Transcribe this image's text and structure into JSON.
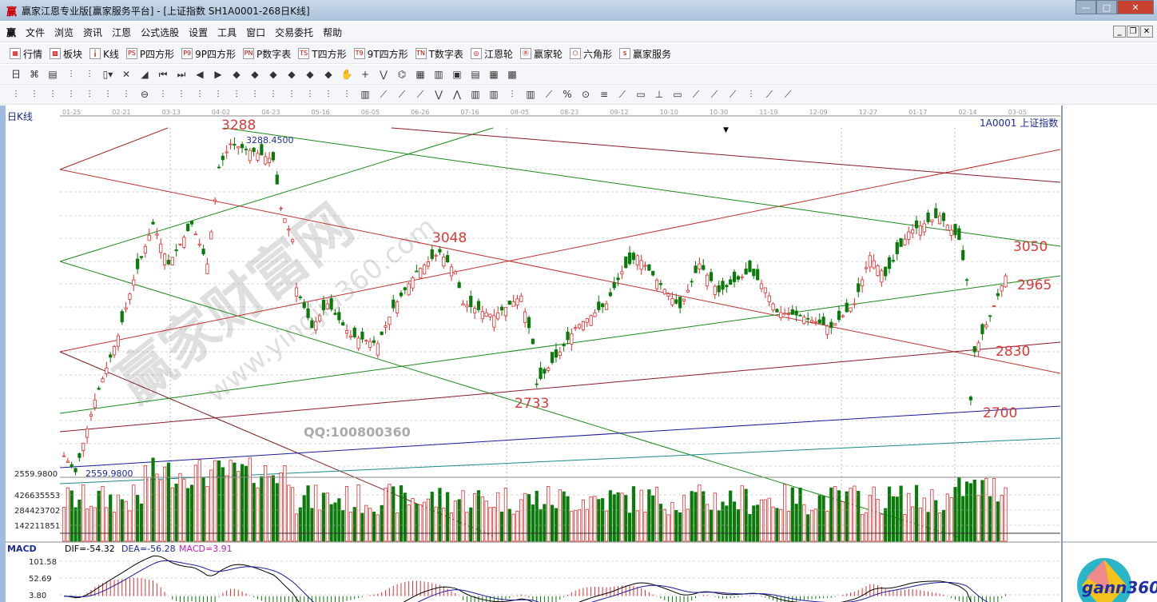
{
  "window": {
    "title": "赢家江恩专业版[赢家服务平台] - [上证指数  SH1A0001-268日K线]",
    "logo": "赢",
    "minimize": "—",
    "maximize": "□",
    "close": "✕"
  },
  "menu": {
    "logo": "赢",
    "items": [
      "文件",
      "浏览",
      "资讯",
      "江恩",
      "公式选股",
      "设置",
      "工具",
      "窗口",
      "交易委托",
      "帮助"
    ],
    "mdi_min": "_",
    "mdi_restore": "❐",
    "mdi_close": "✕"
  },
  "toolbar1": [
    {
      "icon": "grid-icon",
      "glyph": "▦",
      "label": "行情"
    },
    {
      "icon": "blocks-icon",
      "glyph": "▩",
      "label": "板块"
    },
    {
      "icon": "candles-icon",
      "glyph": "╽",
      "label": "K线"
    },
    {
      "icon": "ps-icon",
      "glyph": "PS",
      "label": "P四方形"
    },
    {
      "icon": "p9-icon",
      "glyph": "P9",
      "label": "9P四方形"
    },
    {
      "icon": "pn-icon",
      "glyph": "PN",
      "label": "P数字表"
    },
    {
      "icon": "ts-icon",
      "glyph": "TS",
      "label": "T四方形"
    },
    {
      "icon": "t9-icon",
      "glyph": "T9",
      "label": "9T四方形"
    },
    {
      "icon": "tn-icon",
      "glyph": "TN",
      "label": "T数字表"
    },
    {
      "icon": "gann-wheel-icon",
      "glyph": "◎",
      "label": "江恩轮"
    },
    {
      "icon": "big-wheel-icon",
      "glyph": "Ⓑ",
      "label": "赢家轮"
    },
    {
      "icon": "hexagon-icon",
      "glyph": "⬡",
      "label": "六角形"
    },
    {
      "icon": "dollar-icon",
      "glyph": "$",
      "label": "赢家服务"
    }
  ],
  "toolbar2": [
    "日▾",
    "⌘",
    "▤",
    "⫶",
    "⫶",
    "▯▾",
    "✕",
    "◢",
    "⏮",
    "⏭",
    "◀",
    "▶",
    "◆",
    "◆",
    "◆",
    "◆",
    "◆",
    "◆",
    "✋",
    "+",
    "⋁",
    "⌬",
    "▦",
    "▥",
    "▣",
    "▤",
    "▦",
    "▩"
  ],
  "toolbar3": [
    "⫶",
    "⫶",
    "⫶",
    "⫶",
    "⫶",
    "⫶",
    "⫶",
    "⊖",
    "⫶",
    "⫶",
    "⫶",
    "⫶",
    "⫶",
    "⫶",
    "⫶",
    "⫶",
    "⫶",
    "⫶",
    "⫶",
    "▥",
    "⟋",
    "⟋",
    "⟋",
    "⋁",
    "⋀",
    "▥",
    "▥",
    "⫶",
    "▥",
    "⟋",
    "%",
    "⊙",
    "≡",
    "⟋",
    "▭",
    "⊥",
    "▭",
    "⟋",
    "⟋",
    "⟋",
    "⫶",
    "⟋",
    "⟋"
  ],
  "chart": {
    "period_label": "日K线",
    "symbol_label": "1A0001 上证指数",
    "x_tick_labels": [
      "01-25",
      "02-21",
      "03-13",
      "04-02",
      "04-23",
      "05-16",
      "06-05",
      "06-26",
      "07-16",
      "08-05",
      "08-23",
      "09-12",
      "10-10",
      "10-30",
      "11-19",
      "12-09",
      "12-27",
      "01-17",
      "02-14",
      "03-05"
    ],
    "price_axis_label": "2559.9800",
    "low_marker": "2559.9800",
    "high_marker": "3288.4500",
    "annotations": [
      "3288",
      "3048",
      "2733",
      "3050",
      "2965",
      "2830",
      "2700"
    ],
    "watermark": "赢家财富网",
    "watermark_url": "www.yingjia360.com",
    "qq": "QQ:100800360",
    "colors": {
      "up": "#e03030",
      "down": "#0a7a0a",
      "bg": "#ffffff",
      "annotation": "#d83a3a"
    }
  },
  "volume": {
    "ticks": [
      "426635553",
      "284423702",
      "142211851"
    ]
  },
  "macd": {
    "title": "MACD",
    "dif": "DIF=-54.32",
    "dea": "DEA=-56.28",
    "macd": "MACD=3.91",
    "ticks": [
      "101.58",
      "52.69",
      "3.80"
    ]
  },
  "brand": "gann360",
  "chart_data": {
    "type": "candlestick",
    "note_x": "bar index",
    "approx_close": [
      [
        0,
        2598
      ],
      [
        3,
        2563
      ],
      [
        8,
        2720
      ],
      [
        14,
        2860
      ],
      [
        18,
        2982
      ],
      [
        23,
        3104
      ],
      [
        27,
        3017
      ],
      [
        33,
        3104
      ],
      [
        37,
        3017
      ],
      [
        40,
        3227
      ],
      [
        43,
        3279
      ],
      [
        49,
        3262
      ],
      [
        54,
        3244
      ],
      [
        56,
        3139
      ],
      [
        59,
        3070
      ],
      [
        60,
        2965
      ],
      [
        64,
        2878
      ],
      [
        68,
        2930
      ],
      [
        74,
        2860
      ],
      [
        81,
        2843
      ],
      [
        85,
        2921
      ],
      [
        91,
        3000
      ],
      [
        97,
        3043
      ],
      [
        101,
        3000
      ],
      [
        103,
        2930
      ],
      [
        111,
        2904
      ],
      [
        118,
        2947
      ],
      [
        121,
        2843
      ],
      [
        122,
        2755
      ],
      [
        128,
        2825
      ],
      [
        132,
        2878
      ],
      [
        140,
        2930
      ],
      [
        144,
        3000
      ],
      [
        148,
        3035
      ],
      [
        153,
        2982
      ],
      [
        159,
        2921
      ],
      [
        164,
        3017
      ],
      [
        169,
        2956
      ],
      [
        177,
        3000
      ],
      [
        181,
        2965
      ],
      [
        184,
        2912
      ],
      [
        190,
        2904
      ],
      [
        198,
        2878
      ],
      [
        204,
        2930
      ],
      [
        208,
        3035
      ],
      [
        212,
        2991
      ],
      [
        218,
        3087
      ],
      [
        226,
        3122
      ],
      [
        231,
        3070
      ],
      [
        233,
        2982
      ],
      [
        234,
        2720
      ],
      [
        235,
        2825
      ],
      [
        239,
        2904
      ],
      [
        243,
        2991
      ]
    ],
    "high": 3288.45,
    "low": 2559.98
  }
}
